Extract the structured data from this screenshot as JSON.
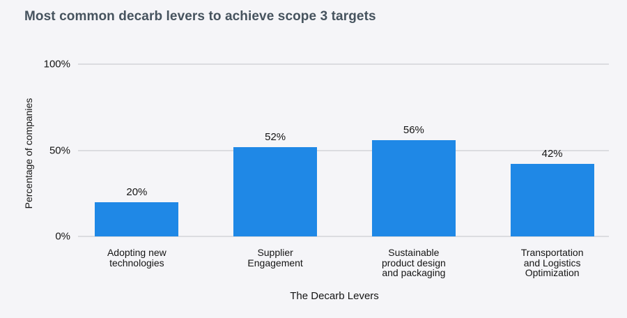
{
  "colors": {
    "background": "#f5f5f8",
    "bar": "#1f88e6",
    "gridline": "#dbdce0",
    "title_text": "#46535e",
    "axis_text": "#141414"
  },
  "chart_data": {
    "type": "bar",
    "title": "Most common decarb levers to achieve scope 3 targets",
    "xlabel": "The Decarb Levers",
    "ylabel": "Percentage of companies",
    "categories": [
      "Adopting new\ntechnologies",
      "Supplier\nEngagement",
      "Sustainable\nproduct design\nand packaging",
      "Transportation\nand Logistics\nOptimization"
    ],
    "values": [
      20,
      52,
      56,
      42
    ],
    "value_labels": [
      "20%",
      "52%",
      "56%",
      "42%"
    ],
    "ylim": [
      0,
      100
    ],
    "yticks": [
      {
        "value": 0,
        "label": "0%"
      },
      {
        "value": 50,
        "label": "50%"
      },
      {
        "value": 100,
        "label": "100%"
      }
    ],
    "grid": "horizontal",
    "legend": "none"
  }
}
